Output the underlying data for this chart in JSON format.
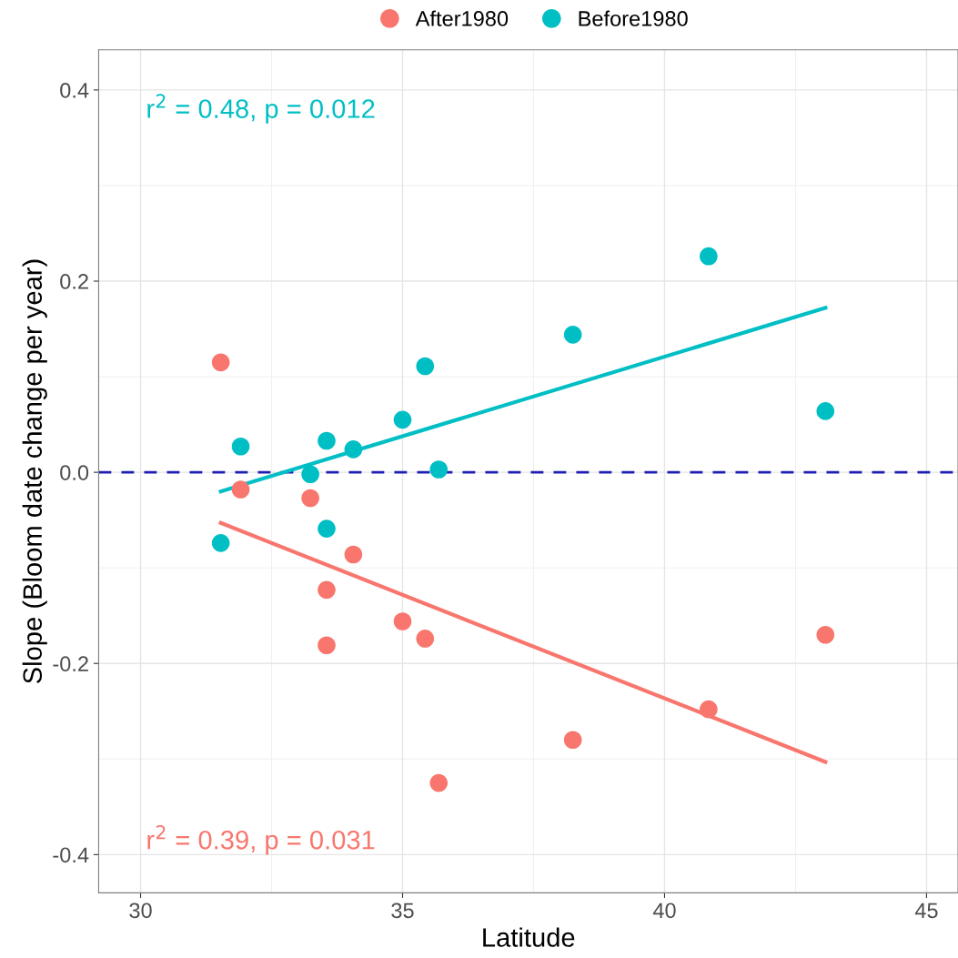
{
  "chart_data": {
    "type": "scatter",
    "xlabel": "Latitude",
    "ylabel": "Slope (Bloom date change per year)",
    "xlim": [
      29.2,
      45.6
    ],
    "ylim": [
      -0.44,
      0.442
    ],
    "xticks": [
      30,
      35,
      40,
      45
    ],
    "yticks": [
      {
        "value": -0.4,
        "label": "-0.4"
      },
      {
        "value": -0.2,
        "label": "-0.2"
      },
      {
        "value": 0.0,
        "label": "0.0"
      },
      {
        "value": 0.2,
        "label": "0.2"
      },
      {
        "value": 0.4,
        "label": "0.4"
      }
    ],
    "grid": true,
    "legend": "top",
    "marker": "circle",
    "series": [
      {
        "name": "After1980",
        "color": "#f8766d",
        "x": [
          31.53,
          31.91,
          33.24,
          33.55,
          33.55,
          34.06,
          35.0,
          35.43,
          35.69,
          38.25,
          40.84,
          43.07
        ],
        "values": [
          0.115,
          -0.018,
          -0.027,
          -0.123,
          -0.181,
          -0.086,
          -0.156,
          -0.174,
          -0.325,
          -0.28,
          -0.248,
          -0.17
        ]
      },
      {
        "name": "Before1980",
        "color": "#00bfc4",
        "x": [
          31.53,
          31.91,
          33.24,
          33.55,
          33.55,
          34.06,
          35.0,
          35.43,
          35.69,
          38.25,
          40.84,
          43.07
        ],
        "values": [
          -0.074,
          0.027,
          -0.002,
          0.033,
          -0.059,
          0.024,
          0.055,
          0.111,
          0.003,
          0.144,
          0.226,
          0.064
        ]
      },
      {
        "type": "line",
        "marker": "none",
        "color": "#f8766d",
        "x": [
          31.53,
          43.07
        ],
        "values": [
          -0.053,
          -0.303
        ]
      },
      {
        "type": "line",
        "marker": "none",
        "color": "#00bfc4",
        "x": [
          31.53,
          43.07
        ],
        "values": [
          -0.02,
          0.172
        ]
      }
    ],
    "ref_lines": [
      {
        "axis": "y",
        "value": 0,
        "color": "#1f1fb4",
        "line_style": "dashed"
      }
    ],
    "annotations": [
      "r$^{2}$ = 0.39, p = 0.031",
      "r$^{2}$ = 0.48, p = 0.012"
    ]
  }
}
